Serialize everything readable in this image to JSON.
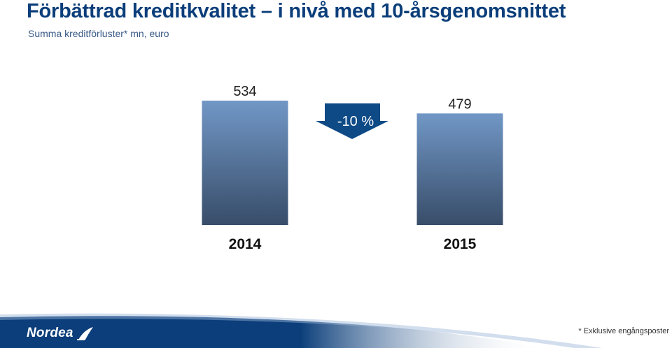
{
  "header": {
    "title": "Förbättrad kreditkvalitet – i nivå med 10-årsgenomsnittet",
    "subtitle": "Summa kreditförluster* mn, euro"
  },
  "chart_data": {
    "type": "bar",
    "title": "Förbättrad kreditkvalitet – i nivå med 10-årsgenomsnittet",
    "subtitle": "Summa kreditförluster* mn, euro",
    "categories": [
      "2014",
      "2015"
    ],
    "values": [
      534,
      479
    ],
    "value_labels": [
      "534",
      "479"
    ],
    "xlabel": "",
    "ylabel": "mn, euro",
    "ylim": [
      0,
      534
    ],
    "grid": false,
    "annotation": {
      "label": "-10 %",
      "direction": "down",
      "color": "#0e4a86"
    },
    "colors": {
      "bar_top": "#7197c6",
      "bar_bottom": "#384d69"
    }
  },
  "footer": {
    "brand": "Nordea",
    "footnote": "* Exklusive engångsposter",
    "band_color": "#0b3e7a"
  }
}
